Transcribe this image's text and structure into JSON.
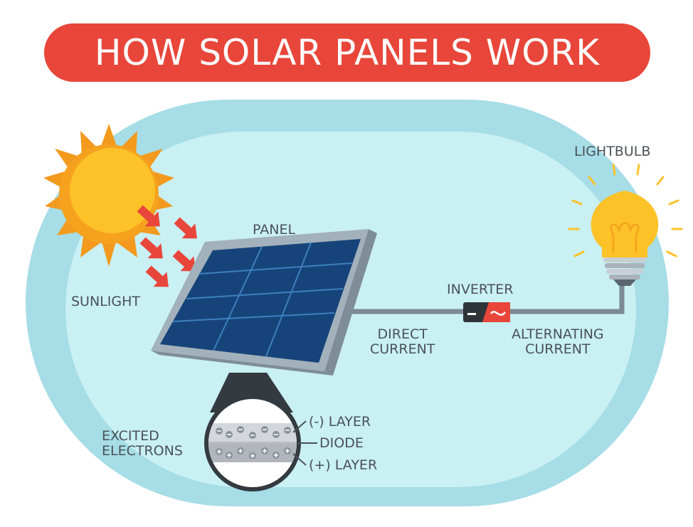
{
  "title": "HOW SOLAR PANELS WORK",
  "labels": {
    "sunlight": "SUNLIGHT",
    "panel": "PANEL",
    "inverter": "INVERTER",
    "lightbulb": "LIGHTBULB",
    "direct_current": [
      "DIRECT",
      "CURRENT"
    ],
    "alternating_current": [
      "ALTERNATING",
      "CURRENT"
    ],
    "excited_electrons": [
      "EXCITED",
      "ELECTRONS"
    ],
    "negative_layer": "(-) LAYER",
    "diode": "DIODE",
    "positive_layer": "(+) LAYER"
  },
  "colors": {
    "title_bg": "#e8463a",
    "background_outer": "#a6dde6",
    "background_inner": "#c9f0f3",
    "sun_orange": "#f39a1e",
    "sun_yellow": "#fcc227",
    "arrow_red": "#e8463a",
    "panel_blue": "#16447a",
    "panel_frame": "#a2b1bb",
    "wire_gray": "#7d8a94",
    "inverter_dark": "#2f3439",
    "bulb_yellow": "#fcc227",
    "text_gray": "#4a5258"
  }
}
